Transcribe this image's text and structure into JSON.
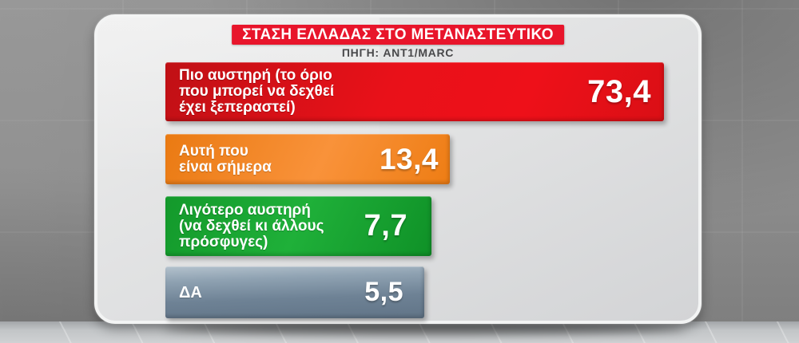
{
  "header": {
    "title": "ΣΤΑΣΗ ΕΛΛΑΔΑΣ ΣΤΟ ΜΕΤΑΝΑΣΤΕΥΤΙΚΟ",
    "source": "ΠΗΓΗ: ANT1/MARC"
  },
  "colors": {
    "title_bg": "#e8152b",
    "bar_red": "#e91119",
    "bar_orange": "#f08a26",
    "bar_green": "#18a52e",
    "bar_slate": "#74879a",
    "source_text": "#49494b",
    "panel_bg": "#e2e3e4",
    "wall_gray": "#8c8c8c"
  },
  "chart_data": {
    "type": "bar",
    "orientation": "horizontal",
    "title": "ΣΤΑΣΗ ΕΛΛΑΔΑΣ ΣΤΟ ΜΕΤΑΝΑΣΤΕΥΤΙΚΟ",
    "source": "ΠΗΓΗ: ANT1/MARC",
    "categories": [
      "Πιο αυστηρή (το όριο που μπορεί να δεχθεί έχει ξεπεραστεί)",
      "Αυτή που είναι σήμερα",
      "Λιγότερο αυστηρή (να δεχθεί κι άλλους πρόσφυγες)",
      "ΔΑ"
    ],
    "values": [
      73.4,
      13.4,
      7.7,
      5.5
    ],
    "value_labels": [
      "73,4",
      "13,4",
      "7,7",
      "5,5"
    ],
    "bar_colors": [
      "#e91119",
      "#f08a26",
      "#18a52e",
      "#74879a"
    ],
    "legend_position": "none",
    "grid": false,
    "axes_visible": false
  },
  "bars": [
    {
      "label_lines": [
        "Πιο αυστηρή (το όριο",
        "που μπορεί να δεχθεί",
        "έχει ξεπεραστεί)"
      ],
      "value_label": "73,4"
    },
    {
      "label_lines": [
        "Αυτή που",
        "είναι σήμερα"
      ],
      "value_label": "13,4"
    },
    {
      "label_lines": [
        "Λιγότερο αυστηρή",
        "(να δεχθεί κι άλλους",
        "πρόσφυγες)"
      ],
      "value_label": "7,7"
    },
    {
      "label_lines": [
        "ΔΑ"
      ],
      "value_label": "5,5"
    }
  ]
}
